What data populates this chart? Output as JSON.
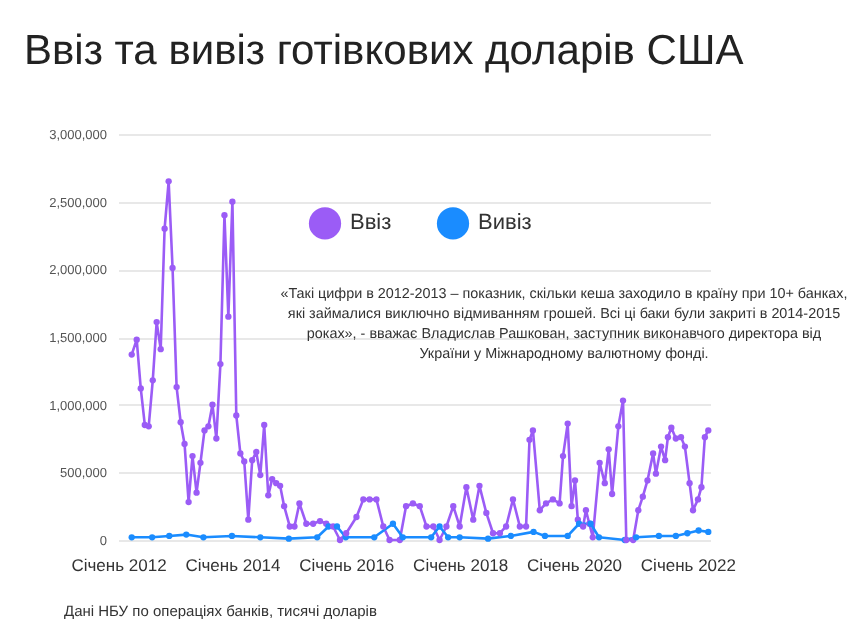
{
  "chart_data": {
    "type": "line",
    "title": "Ввіз та вивіз готівкових доларів США",
    "annotations": [
      "«Такі цифри в 2012-2013 – показник, скільки кеша заходило в країну при 10+ банках, які займалися виключно відмиванням грошей. Всі ці баки були закриті в 2014-2015 роках», - вважає Владислав Рашкован, заступник виконавчого директора від України у Міжнародному валютному фонді.",
      "Дані НБУ по операціях банків, тисячі доларів"
    ],
    "xlim": [
      "2012-01-01",
      "2022-05-26"
    ],
    "xticks": [
      {
        "value": "2012-01",
        "label": "Січень 2012"
      },
      {
        "value": "2014-01",
        "label": "Січень 2014"
      },
      {
        "value": "2016-01",
        "label": "Січень 2016"
      },
      {
        "value": "2018-01",
        "label": "Січень 2018"
      },
      {
        "value": "2020-01",
        "label": "Січень 2020"
      },
      {
        "value": "2022-01",
        "label": "Січень 2022"
      }
    ],
    "ylim": [
      0,
      3000000
    ],
    "yticks": [
      {
        "value": 0,
        "label": "0"
      },
      {
        "value": 500000,
        "label": "500,000"
      },
      {
        "value": 1000000,
        "label": "1,000,000"
      },
      {
        "value": 1500000,
        "label": "1,500,000"
      },
      {
        "value": 2000000,
        "label": "2,000,000"
      },
      {
        "value": 2500000,
        "label": "2,500,000"
      },
      {
        "value": 3000000,
        "label": "3,000,000"
      }
    ],
    "grid": "y",
    "legend": "top",
    "marker": "circle",
    "line_style": "solid",
    "series": [
      {
        "name": "Ввіз",
        "color": "#9b5cf6",
        "x": [
          "2012-03-29",
          "2012-04-30",
          "2012-05-26",
          "2012-06-21",
          "2012-07-16",
          "2012-08-11",
          "2012-09-05",
          "2012-10-01",
          "2012-10-26",
          "2012-11-21",
          "2012-12-16",
          "2013-01-11",
          "2013-02-06",
          "2013-03-03",
          "2013-03-29",
          "2013-04-23",
          "2013-05-19",
          "2013-06-13",
          "2013-07-09",
          "2013-08-03",
          "2013-08-29",
          "2013-09-23",
          "2013-10-19",
          "2013-11-14",
          "2013-12-09",
          "2014-01-04",
          "2014-01-29",
          "2014-02-24",
          "2014-03-21",
          "2014-04-16",
          "2014-05-11",
          "2014-06-06",
          "2014-07-02",
          "2014-07-27",
          "2014-08-22",
          "2014-09-16",
          "2014-10-12",
          "2014-11-06",
          "2014-12-02",
          "2015-01-07",
          "2015-02-06",
          "2015-03-10",
          "2015-04-23",
          "2015-06-06",
          "2015-07-20",
          "2015-08-29",
          "2015-10-12",
          "2015-11-25",
          "2016-01-04",
          "2016-03-10",
          "2016-04-23",
          "2016-06-02",
          "2016-07-16",
          "2016-08-29",
          "2016-10-08",
          "2016-12-13",
          "2017-01-22",
          "2017-03-07",
          "2017-04-20",
          "2017-06-02",
          "2017-07-16",
          "2017-08-25",
          "2017-10-08",
          "2017-11-21",
          "2018-01-01",
          "2018-02-13",
          "2018-03-29",
          "2018-05-08",
          "2018-06-21",
          "2018-08-03",
          "2018-09-16",
          "2018-10-26",
          "2018-12-09",
          "2019-01-22",
          "2019-03-03",
          "2019-03-25",
          "2019-04-16",
          "2019-05-30",
          "2019-07-09",
          "2019-08-22",
          "2019-10-04",
          "2019-10-26",
          "2019-11-25",
          "2019-12-20",
          "2020-01-11",
          "2020-01-29",
          "2020-03-03",
          "2020-03-21",
          "2020-04-12",
          "2020-05-04",
          "2020-06-17",
          "2020-07-20",
          "2020-08-14",
          "2020-09-05",
          "2020-10-15",
          "2020-11-14",
          "2020-12-05",
          "2021-01-18",
          "2021-02-20",
          "2021-03-21",
          "2021-04-20",
          "2021-05-26",
          "2021-06-13",
          "2021-07-16",
          "2021-08-11",
          "2021-08-29",
          "2021-09-20",
          "2021-10-19",
          "2021-11-21",
          "2021-12-16",
          "2022-01-15",
          "2022-02-06",
          "2022-03-10",
          "2022-04-01",
          "2022-04-23",
          "2022-05-15"
        ],
        "values": [
          1370000,
          1480000,
          1120000,
          850000,
          840000,
          1180000,
          1610000,
          1410000,
          2300000,
          2650000,
          2010000,
          1130000,
          870000,
          710000,
          280000,
          620000,
          350000,
          570000,
          810000,
          840000,
          1000000,
          750000,
          1300000,
          2400000,
          1650000,
          2500000,
          920000,
          640000,
          580000,
          150000,
          590000,
          650000,
          480000,
          850000,
          330000,
          450000,
          420000,
          400000,
          250000,
          100000,
          100000,
          270000,
          120000,
          120000,
          140000,
          120000,
          100000,
          0,
          50000,
          170000,
          300000,
          300000,
          300000,
          100000,
          0,
          0,
          250000,
          270000,
          250000,
          100000,
          100000,
          0,
          100000,
          250000,
          100000,
          390000,
          150000,
          400000,
          200000,
          50000,
          50000,
          100000,
          300000,
          100000,
          100000,
          740000,
          810000,
          220000,
          270000,
          300000,
          270000,
          620000,
          860000,
          250000,
          440000,
          150000,
          100000,
          220000,
          120000,
          20000,
          570000,
          420000,
          670000,
          340000,
          840000,
          1030000,
          0,
          0,
          220000,
          320000,
          440000,
          640000,
          490000,
          690000,
          590000,
          760000,
          830000,
          750000,
          760000,
          690000,
          420000,
          220000,
          300000,
          390000,
          760000,
          810000
        ]
      },
      {
        "name": "Вивіз",
        "color": "#1a8cff",
        "x": [
          "2012-03-29",
          "2012-08-07",
          "2012-11-25",
          "2013-03-14",
          "2013-07-02",
          "2014-01-01",
          "2014-07-02",
          "2015-01-01",
          "2015-07-02",
          "2015-09-13",
          "2015-11-06",
          "2016-01-01",
          "2016-07-02",
          "2016-10-30",
          "2017-01-01",
          "2017-07-02",
          "2017-08-25",
          "2017-10-19",
          "2018-01-01",
          "2018-07-02",
          "2018-11-25",
          "2019-04-20",
          "2019-07-02",
          "2019-11-25",
          "2020-02-06",
          "2020-04-20",
          "2020-06-13",
          "2020-11-25",
          "2021-02-06",
          "2021-07-02",
          "2021-10-19",
          "2022-01-01",
          "2022-03-14",
          "2022-05-15"
        ],
        "values": [
          20000,
          20000,
          30000,
          40000,
          20000,
          30000,
          20000,
          10000,
          20000,
          100000,
          100000,
          20000,
          20000,
          120000,
          20000,
          20000,
          100000,
          20000,
          20000,
          10000,
          30000,
          60000,
          30000,
          30000,
          120000,
          120000,
          20000,
          0,
          20000,
          30000,
          30000,
          50000,
          70000,
          60000
        ]
      }
    ]
  }
}
